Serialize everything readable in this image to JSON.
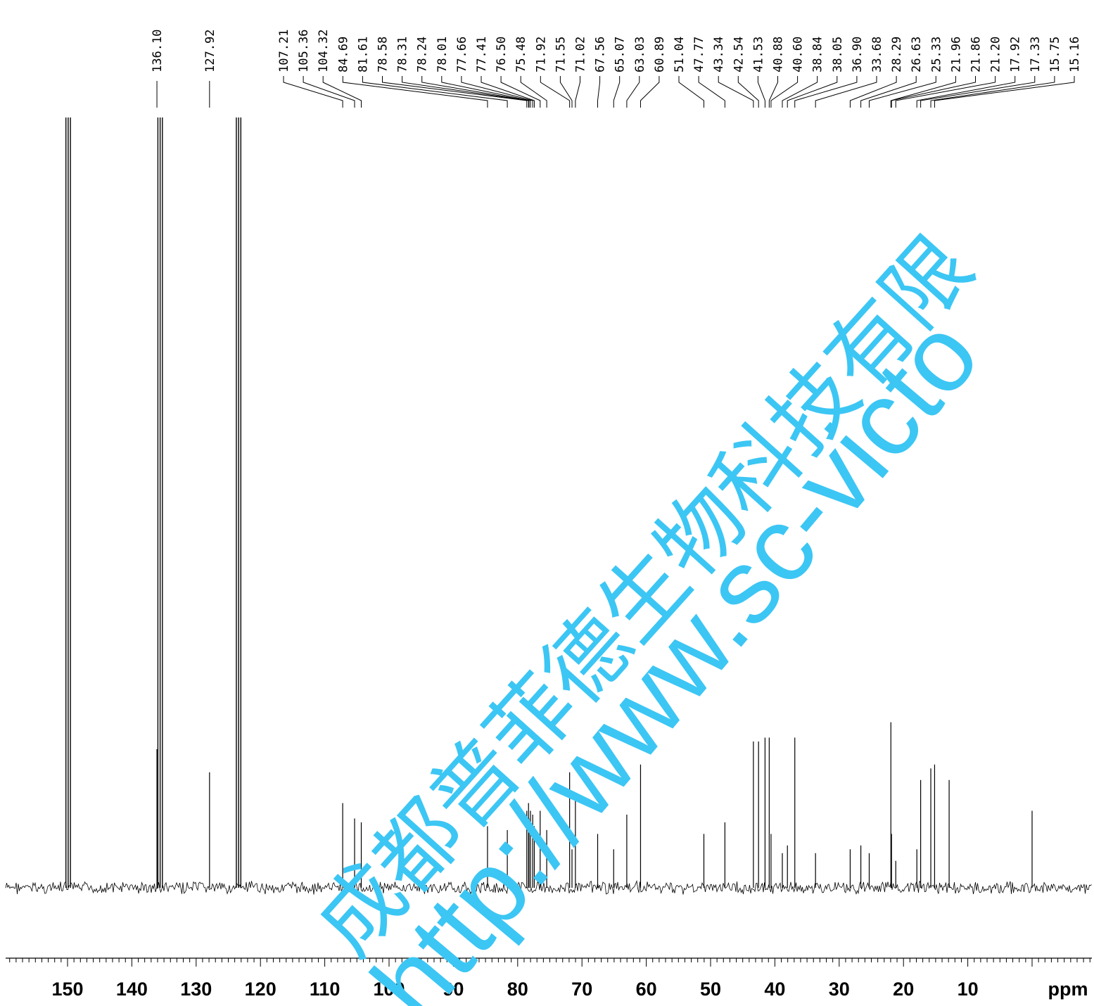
{
  "chart_data": {
    "type": "line",
    "xlabel": "ppm",
    "x_axis": {
      "min": -10,
      "max": 160,
      "reversed": true,
      "major_ticks": [
        150,
        140,
        130,
        120,
        110,
        100,
        90,
        80,
        70,
        60,
        50,
        40,
        30,
        20,
        10
      ]
    },
    "grid": false,
    "solvent_peaks": [
      {
        "ppm": 149.9,
        "intensity": 1.0
      },
      {
        "ppm": 135.6,
        "intensity": 1.0
      },
      {
        "ppm": 123.4,
        "intensity": 1.0
      }
    ],
    "peaks": [
      {
        "label": "136.10",
        "ppm": 136.1,
        "intensity": 0.18
      },
      {
        "label": "127.92",
        "ppm": 127.92,
        "intensity": 0.15
      },
      {
        "label": "107.21",
        "ppm": 107.21,
        "intensity": 0.11
      },
      {
        "label": "105.36",
        "ppm": 105.36,
        "intensity": 0.09
      },
      {
        "label": "104.32",
        "ppm": 104.32,
        "intensity": 0.085
      },
      {
        "label": "84.69",
        "ppm": 84.69,
        "intensity": 0.08
      },
      {
        "label": "81.61",
        "ppm": 81.61,
        "intensity": 0.075
      },
      {
        "label": "78.58",
        "ppm": 78.58,
        "intensity": 0.1
      },
      {
        "label": "78.31",
        "ppm": 78.31,
        "intensity": 0.11
      },
      {
        "label": "78.24",
        "ppm": 78.24,
        "intensity": 0.09
      },
      {
        "label": "78.01",
        "ppm": 78.01,
        "intensity": 0.1
      },
      {
        "label": "77.66",
        "ppm": 77.66,
        "intensity": 0.095
      },
      {
        "label": "77.41",
        "ppm": 77.41,
        "intensity": 0.08
      },
      {
        "label": "76.50",
        "ppm": 76.5,
        "intensity": 0.1
      },
      {
        "label": "75.48",
        "ppm": 75.48,
        "intensity": 0.075
      },
      {
        "label": "71.92",
        "ppm": 71.92,
        "intensity": 0.15
      },
      {
        "label": "71.55",
        "ppm": 71.55,
        "intensity": 0.05
      },
      {
        "label": "71.02",
        "ppm": 71.02,
        "intensity": 0.12
      },
      {
        "label": "67.56",
        "ppm": 67.56,
        "intensity": 0.07
      },
      {
        "label": "65.07",
        "ppm": 65.07,
        "intensity": 0.05
      },
      {
        "label": "63.03",
        "ppm": 63.03,
        "intensity": 0.095
      },
      {
        "label": "60.89",
        "ppm": 60.89,
        "intensity": 0.16
      },
      {
        "label": "51.04",
        "ppm": 51.04,
        "intensity": 0.07
      },
      {
        "label": "47.77",
        "ppm": 47.77,
        "intensity": 0.085
      },
      {
        "label": "43.34",
        "ppm": 43.34,
        "intensity": 0.19
      },
      {
        "label": "42.54",
        "ppm": 42.54,
        "intensity": 0.19
      },
      {
        "label": "41.53",
        "ppm": 41.53,
        "intensity": 0.195
      },
      {
        "label": "40.88",
        "ppm": 40.88,
        "intensity": 0.195
      },
      {
        "label": "40.60",
        "ppm": 40.6,
        "intensity": 0.07
      },
      {
        "label": "38.84",
        "ppm": 38.84,
        "intensity": 0.045
      },
      {
        "label": "38.05",
        "ppm": 38.05,
        "intensity": 0.055
      },
      {
        "label": "36.90",
        "ppm": 36.9,
        "intensity": 0.195
      },
      {
        "label": "33.68",
        "ppm": 33.68,
        "intensity": 0.045
      },
      {
        "label": "28.29",
        "ppm": 28.29,
        "intensity": 0.05
      },
      {
        "label": "26.63",
        "ppm": 26.63,
        "intensity": 0.055
      },
      {
        "label": "25.33",
        "ppm": 25.33,
        "intensity": 0.045
      },
      {
        "label": "21.96",
        "ppm": 21.96,
        "intensity": 0.215
      },
      {
        "label": "21.86",
        "ppm": 21.86,
        "intensity": 0.07
      },
      {
        "label": "21.20",
        "ppm": 21.2,
        "intensity": 0.035
      },
      {
        "label": "17.92",
        "ppm": 17.92,
        "intensity": 0.05
      },
      {
        "label": "17.33",
        "ppm": 17.33,
        "intensity": 0.14
      },
      {
        "label": "15.75",
        "ppm": 15.75,
        "intensity": 0.155
      },
      {
        "label": "15.16",
        "ppm": 15.16,
        "intensity": 0.16
      }
    ],
    "unlabeled_peaks": [
      {
        "ppm": 12.9,
        "intensity": 0.14
      },
      {
        "ppm": 0.0,
        "intensity": 0.1
      }
    ]
  },
  "watermark": {
    "company": "成都普菲德生物科技有限",
    "url": "http://www.sc-victo",
    "color": "#3cc6f4"
  }
}
